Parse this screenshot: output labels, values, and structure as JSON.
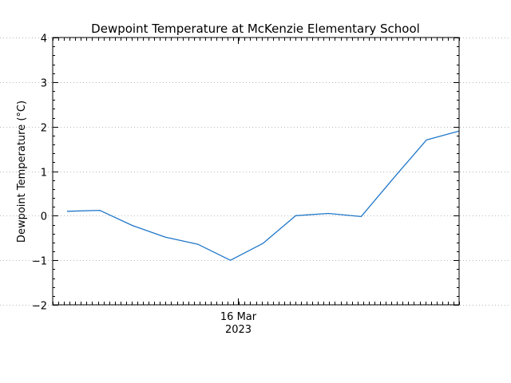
{
  "chart_data": {
    "type": "line",
    "title": "Dewpoint Temperature at McKenzie Elementary School",
    "ylabel": "Dewpoint Temperature (°C)",
    "xlabel": "",
    "x_tick_labels": [
      {
        "line1": "16 Mar",
        "line2": "2023",
        "position_fraction": 0.455
      }
    ],
    "ylim": [
      -2,
      4
    ],
    "y_ticks": [
      -2,
      -1,
      0,
      1,
      2,
      3,
      4
    ],
    "y_tick_labels": [
      "−2",
      "−1",
      "0",
      "1",
      "2",
      "3",
      "4"
    ],
    "grid": true,
    "legend": "none",
    "series": [
      {
        "color": "#1f77c9",
        "values": [
          0.1,
          0.12,
          -0.22,
          -0.48,
          -0.64,
          -1.0,
          -0.62,
          0.0,
          0.05,
          -0.02,
          0.85,
          1.7,
          1.9
        ]
      }
    ]
  }
}
